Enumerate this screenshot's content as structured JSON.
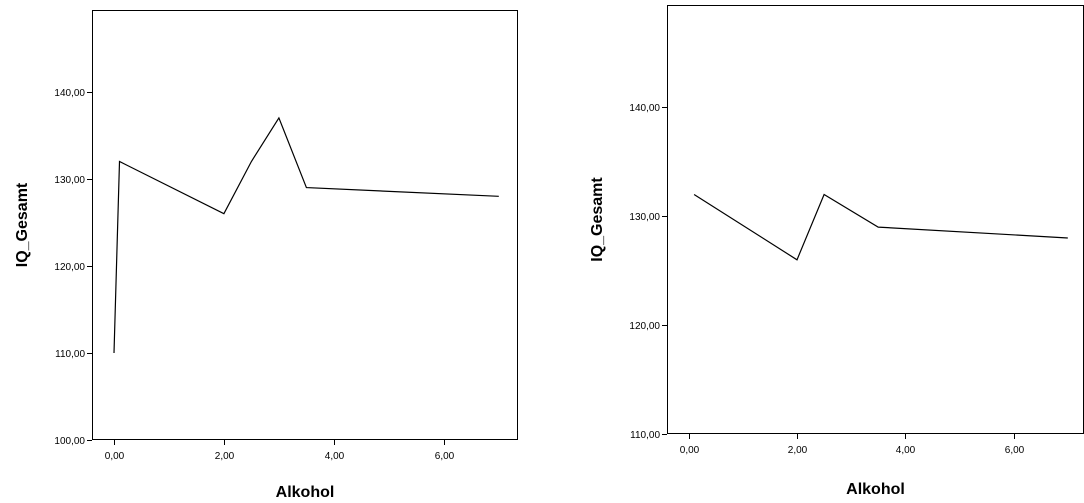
{
  "chart_data": [
    {
      "type": "line",
      "xlabel": "Alkohol",
      "ylabel": "IQ_Gesamt",
      "xlim": [
        -0.4,
        7.35
      ],
      "ylim": [
        100,
        149.4
      ],
      "xticks": [
        0,
        2,
        4,
        6
      ],
      "xtick_labels": [
        "0,00",
        "2,00",
        "4,00",
        "6,00"
      ],
      "yticks": [
        100,
        110,
        120,
        130,
        140
      ],
      "ytick_labels": [
        "100,00",
        "110,00",
        "120,00",
        "130,00",
        "140,00"
      ],
      "grid": false,
      "series": [
        {
          "x": [
            0.0,
            0.1,
            2.0,
            2.5,
            3.0,
            3.5,
            7.0
          ],
          "y": [
            110,
            132,
            126,
            132,
            137,
            129,
            128
          ]
        }
      ]
    },
    {
      "type": "line",
      "xlabel": "Alkohol",
      "ylabel": "IQ_Gesamt",
      "xlim": [
        -0.4,
        7.3
      ],
      "ylim": [
        110,
        149.4
      ],
      "xticks": [
        0,
        2,
        4,
        6
      ],
      "xtick_labels": [
        "0,00",
        "2,00",
        "4,00",
        "6,00"
      ],
      "yticks": [
        110,
        120,
        130,
        140
      ],
      "ytick_labels": [
        "110,00",
        "120,00",
        "130,00",
        "140,00"
      ],
      "grid": false,
      "series": [
        {
          "x": [
            0.1,
            2.0,
            2.5,
            3.5,
            7.0
          ],
          "y": [
            132,
            126,
            132,
            129,
            128
          ]
        }
      ]
    }
  ]
}
